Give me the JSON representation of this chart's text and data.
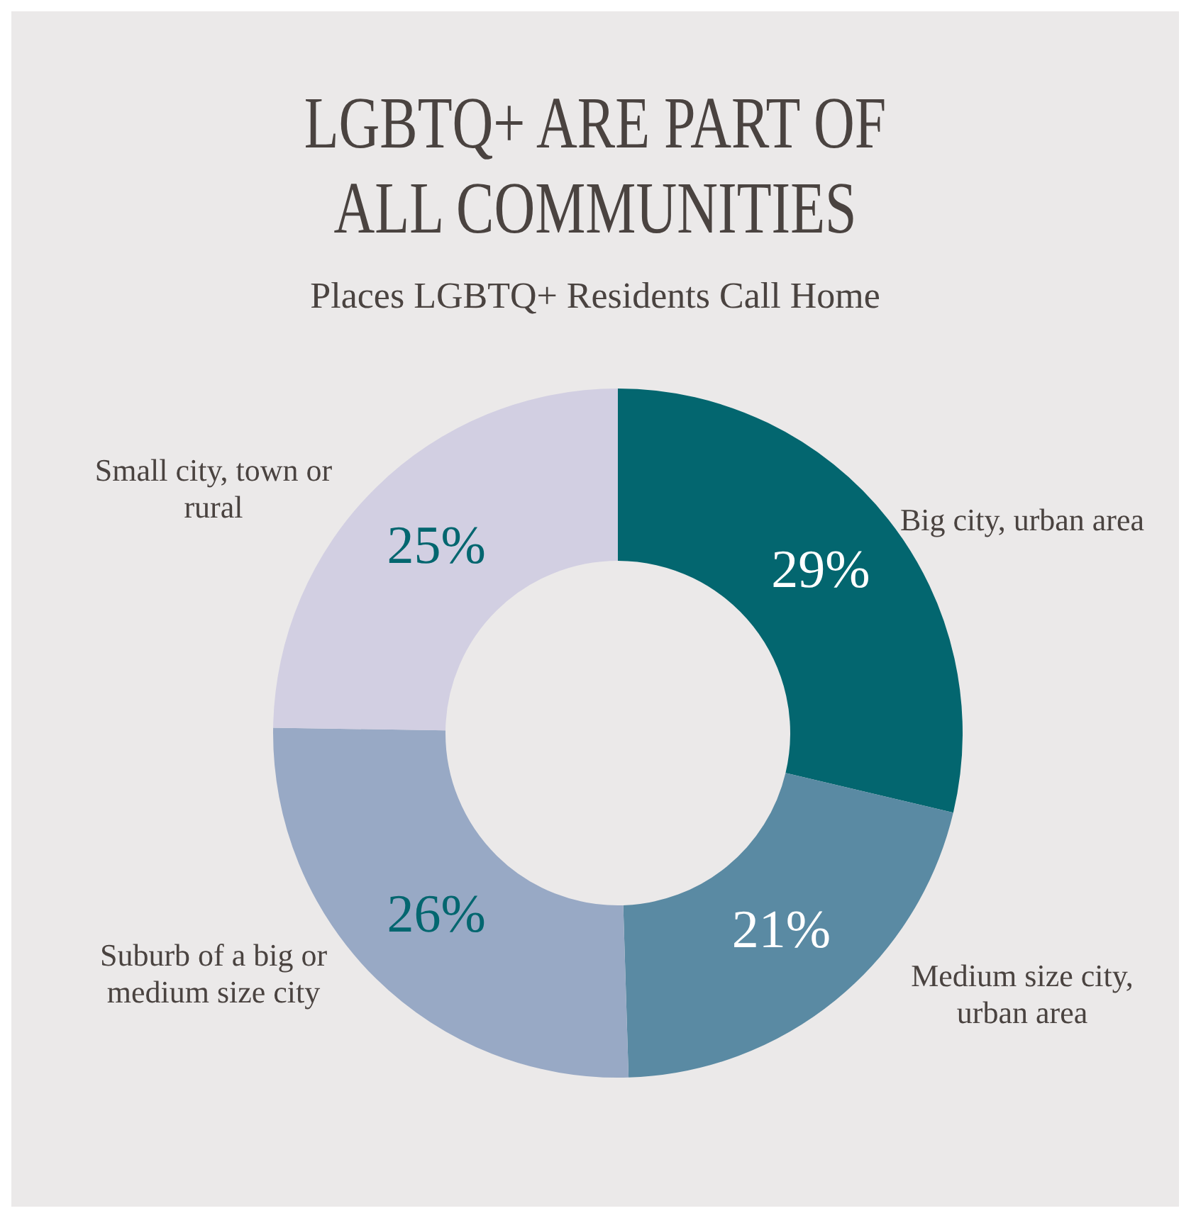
{
  "chart_data": {
    "type": "donut",
    "title": "LGBTQ+ ARE PART OF ALL COMMUNITIES",
    "subtitle": "Places LGBTQ+ Residents Call Home",
    "categories": [
      "Big city, urban area",
      "Medium size city, urban area",
      "Suburb of a big or medium size city",
      "Small city, town or rural"
    ],
    "values": [
      29,
      21,
      26,
      25
    ],
    "colors": [
      "#03666f",
      "#5a8aa3",
      "#98a9c5",
      "#d2cfe2"
    ],
    "value_labels": [
      "29%",
      "21%",
      "26%",
      "25%"
    ],
    "legend": false
  }
}
